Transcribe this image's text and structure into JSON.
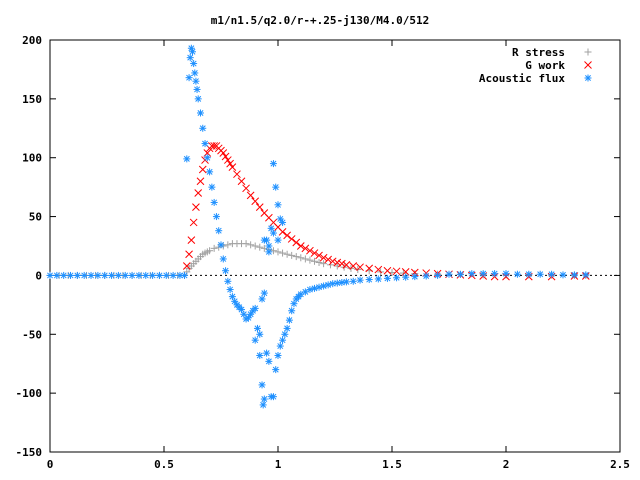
{
  "chart_data": {
    "type": "scatter",
    "title": "m1/n1.5/q2.0/r-+.25-j130/M4.0/512",
    "xlabel": "",
    "ylabel": "",
    "xlim": [
      0,
      2.5
    ],
    "ylim": [
      -150,
      200
    ],
    "xticks": [
      0,
      0.5,
      1,
      1.5,
      2,
      2.5
    ],
    "xtick_labels": [
      "0",
      "0.5",
      "1",
      "1.5",
      "2",
      "2.5"
    ],
    "yticks": [
      -150,
      -100,
      -50,
      0,
      50,
      100,
      150,
      200
    ],
    "ytick_labels": [
      "-150",
      "-100",
      "-50",
      "0",
      "50",
      "100",
      "150",
      "200"
    ],
    "grid": false,
    "legend_position": "top-right",
    "series": [
      {
        "name": "R stress",
        "marker": "plus",
        "color": "#a0a0a0",
        "points": [
          [
            0.0,
            0
          ],
          [
            0.04,
            0
          ],
          [
            0.08,
            0
          ],
          [
            0.12,
            0
          ],
          [
            0.16,
            0
          ],
          [
            0.2,
            0
          ],
          [
            0.24,
            0
          ],
          [
            0.28,
            0
          ],
          [
            0.32,
            0
          ],
          [
            0.36,
            0
          ],
          [
            0.4,
            0
          ],
          [
            0.44,
            0
          ],
          [
            0.48,
            0
          ],
          [
            0.52,
            0
          ],
          [
            0.56,
            0
          ],
          [
            0.59,
            0
          ],
          [
            0.6,
            3
          ],
          [
            0.61,
            6
          ],
          [
            0.62,
            8
          ],
          [
            0.63,
            10
          ],
          [
            0.64,
            12
          ],
          [
            0.65,
            14
          ],
          [
            0.66,
            16
          ],
          [
            0.67,
            18
          ],
          [
            0.68,
            19
          ],
          [
            0.69,
            20
          ],
          [
            0.7,
            21
          ],
          [
            0.72,
            23
          ],
          [
            0.74,
            24
          ],
          [
            0.76,
            25
          ],
          [
            0.78,
            26
          ],
          [
            0.8,
            27
          ],
          [
            0.82,
            27
          ],
          [
            0.84,
            27
          ],
          [
            0.86,
            27
          ],
          [
            0.88,
            26
          ],
          [
            0.9,
            25
          ],
          [
            0.92,
            24
          ],
          [
            0.94,
            23
          ],
          [
            0.96,
            22
          ],
          [
            0.98,
            21
          ],
          [
            1.0,
            20
          ],
          [
            1.02,
            19
          ],
          [
            1.04,
            18
          ],
          [
            1.06,
            17
          ],
          [
            1.08,
            16
          ],
          [
            1.1,
            15
          ],
          [
            1.12,
            14
          ],
          [
            1.14,
            13
          ],
          [
            1.16,
            12
          ],
          [
            1.18,
            11
          ],
          [
            1.2,
            10
          ],
          [
            1.23,
            9
          ],
          [
            1.26,
            8
          ],
          [
            1.29,
            7
          ],
          [
            1.32,
            6
          ],
          [
            1.35,
            5
          ],
          [
            1.4,
            4
          ],
          [
            1.45,
            3
          ],
          [
            1.5,
            2.5
          ],
          [
            1.55,
            2
          ],
          [
            1.6,
            1.5
          ],
          [
            1.7,
            1
          ],
          [
            1.8,
            0.8
          ],
          [
            1.9,
            0.5
          ],
          [
            2.0,
            0.4
          ],
          [
            2.1,
            0.3
          ],
          [
            2.2,
            0.2
          ],
          [
            2.3,
            0.1
          ],
          [
            2.35,
            0.1
          ]
        ]
      },
      {
        "name": "G work",
        "marker": "cross",
        "color": "#ff0000",
        "points": [
          [
            0.6,
            8
          ],
          [
            0.61,
            18
          ],
          [
            0.62,
            30
          ],
          [
            0.63,
            45
          ],
          [
            0.64,
            58
          ],
          [
            0.65,
            70
          ],
          [
            0.66,
            80
          ],
          [
            0.67,
            90
          ],
          [
            0.68,
            98
          ],
          [
            0.69,
            104
          ],
          [
            0.7,
            108
          ],
          [
            0.71,
            110
          ],
          [
            0.72,
            110
          ],
          [
            0.73,
            110
          ],
          [
            0.74,
            108
          ],
          [
            0.75,
            106
          ],
          [
            0.76,
            104
          ],
          [
            0.77,
            101
          ],
          [
            0.78,
            98
          ],
          [
            0.79,
            95
          ],
          [
            0.8,
            92
          ],
          [
            0.82,
            86
          ],
          [
            0.84,
            80
          ],
          [
            0.86,
            74
          ],
          [
            0.88,
            68
          ],
          [
            0.9,
            63
          ],
          [
            0.92,
            58
          ],
          [
            0.94,
            53
          ],
          [
            0.96,
            49
          ],
          [
            0.98,
            45
          ],
          [
            1.0,
            41
          ],
          [
            1.02,
            37
          ],
          [
            1.04,
            34
          ],
          [
            1.06,
            31
          ],
          [
            1.08,
            28
          ],
          [
            1.1,
            25
          ],
          [
            1.12,
            23
          ],
          [
            1.14,
            21
          ],
          [
            1.16,
            19
          ],
          [
            1.18,
            17
          ],
          [
            1.2,
            15
          ],
          [
            1.22,
            13.5
          ],
          [
            1.24,
            12
          ],
          [
            1.26,
            11
          ],
          [
            1.28,
            10
          ],
          [
            1.3,
            9
          ],
          [
            1.33,
            8
          ],
          [
            1.36,
            7
          ],
          [
            1.4,
            6
          ],
          [
            1.44,
            5
          ],
          [
            1.48,
            4
          ],
          [
            1.52,
            3.5
          ],
          [
            1.56,
            3
          ],
          [
            1.6,
            2.5
          ],
          [
            1.65,
            2
          ],
          [
            1.7,
            1.5
          ],
          [
            1.75,
            1
          ],
          [
            1.8,
            0.5
          ],
          [
            1.85,
            0
          ],
          [
            1.9,
            -0.5
          ],
          [
            1.95,
            -1
          ],
          [
            2.0,
            -1
          ],
          [
            2.1,
            -1
          ],
          [
            2.2,
            -1
          ],
          [
            2.3,
            -0.5
          ],
          [
            2.35,
            -0.5
          ]
        ]
      },
      {
        "name": "Acoustic flux",
        "marker": "star",
        "color": "#1e90ff",
        "points": [
          [
            0.0,
            0
          ],
          [
            0.03,
            0
          ],
          [
            0.06,
            0
          ],
          [
            0.09,
            0
          ],
          [
            0.12,
            0
          ],
          [
            0.15,
            0
          ],
          [
            0.18,
            0
          ],
          [
            0.21,
            0
          ],
          [
            0.24,
            0
          ],
          [
            0.27,
            0
          ],
          [
            0.3,
            0
          ],
          [
            0.33,
            0
          ],
          [
            0.36,
            0
          ],
          [
            0.39,
            0
          ],
          [
            0.42,
            0
          ],
          [
            0.45,
            0
          ],
          [
            0.48,
            0
          ],
          [
            0.51,
            0
          ],
          [
            0.54,
            0
          ],
          [
            0.57,
            0
          ],
          [
            0.59,
            0
          ],
          [
            0.6,
            99
          ],
          [
            0.61,
            168
          ],
          [
            0.615,
            185
          ],
          [
            0.62,
            193
          ],
          [
            0.625,
            190
          ],
          [
            0.63,
            180
          ],
          [
            0.635,
            172
          ],
          [
            0.64,
            165
          ],
          [
            0.645,
            158
          ],
          [
            0.65,
            150
          ],
          [
            0.66,
            138
          ],
          [
            0.67,
            125
          ],
          [
            0.68,
            112
          ],
          [
            0.69,
            100
          ],
          [
            0.7,
            88
          ],
          [
            0.71,
            75
          ],
          [
            0.72,
            62
          ],
          [
            0.73,
            50
          ],
          [
            0.74,
            38
          ],
          [
            0.75,
            26
          ],
          [
            0.76,
            14
          ],
          [
            0.77,
            4
          ],
          [
            0.78,
            -5
          ],
          [
            0.79,
            -12
          ],
          [
            0.8,
            -18
          ],
          [
            0.81,
            -22
          ],
          [
            0.82,
            -25
          ],
          [
            0.83,
            -27
          ],
          [
            0.84,
            -29
          ],
          [
            0.85,
            -33
          ],
          [
            0.86,
            -37
          ],
          [
            0.87,
            -36
          ],
          [
            0.88,
            -33
          ],
          [
            0.89,
            -30
          ],
          [
            0.9,
            -28
          ],
          [
            0.91,
            -45
          ],
          [
            0.92,
            -68
          ],
          [
            0.93,
            -93
          ],
          [
            0.935,
            -110
          ],
          [
            0.94,
            -105
          ],
          [
            0.95,
            -66
          ],
          [
            0.96,
            -73
          ],
          [
            0.97,
            -103
          ],
          [
            0.98,
            -103
          ],
          [
            0.99,
            -80
          ],
          [
            1.0,
            -68
          ],
          [
            1.01,
            -60
          ],
          [
            1.02,
            -55
          ],
          [
            1.03,
            -50
          ],
          [
            1.04,
            -45
          ],
          [
            1.05,
            -38
          ],
          [
            1.06,
            -30
          ],
          [
            1.07,
            -24
          ],
          [
            1.08,
            -20
          ],
          [
            1.09,
            -18
          ],
          [
            1.1,
            -16
          ],
          [
            1.12,
            -14
          ],
          [
            1.14,
            -12
          ],
          [
            1.16,
            -11
          ],
          [
            1.18,
            -10
          ],
          [
            1.2,
            -9
          ],
          [
            1.22,
            -8
          ],
          [
            1.24,
            -7
          ],
          [
            1.26,
            -6.5
          ],
          [
            1.28,
            -6
          ],
          [
            1.3,
            -5.5
          ],
          [
            1.33,
            -5
          ],
          [
            1.36,
            -4
          ],
          [
            1.4,
            -3.5
          ],
          [
            1.44,
            -3
          ],
          [
            1.48,
            -2.5
          ],
          [
            1.52,
            -2
          ],
          [
            1.56,
            -1.5
          ],
          [
            1.6,
            -1
          ],
          [
            1.65,
            -0.5
          ],
          [
            1.7,
            0
          ],
          [
            1.75,
            1
          ],
          [
            1.8,
            1
          ],
          [
            1.85,
            1.5
          ],
          [
            1.9,
            1.5
          ],
          [
            1.95,
            1.5
          ],
          [
            2.0,
            1.5
          ],
          [
            2.05,
            1
          ],
          [
            2.1,
            1
          ],
          [
            2.15,
            1
          ],
          [
            2.2,
            1
          ],
          [
            2.25,
            0.5
          ],
          [
            2.3,
            0.5
          ],
          [
            2.35,
            0.5
          ],
          [
            0.94,
            30
          ],
          [
            0.95,
            30
          ],
          [
            0.96,
            25
          ],
          [
            0.97,
            40
          ],
          [
            0.98,
            36
          ],
          [
            1.0,
            60
          ],
          [
            1.01,
            48
          ],
          [
            1.02,
            45
          ],
          [
            0.99,
            75
          ],
          [
            0.98,
            95
          ],
          [
            0.96,
            20
          ],
          [
            0.92,
            -50
          ],
          [
            0.9,
            -55
          ],
          [
            0.94,
            -15
          ],
          [
            0.93,
            -20
          ],
          [
            1.0,
            30
          ]
        ]
      }
    ]
  }
}
